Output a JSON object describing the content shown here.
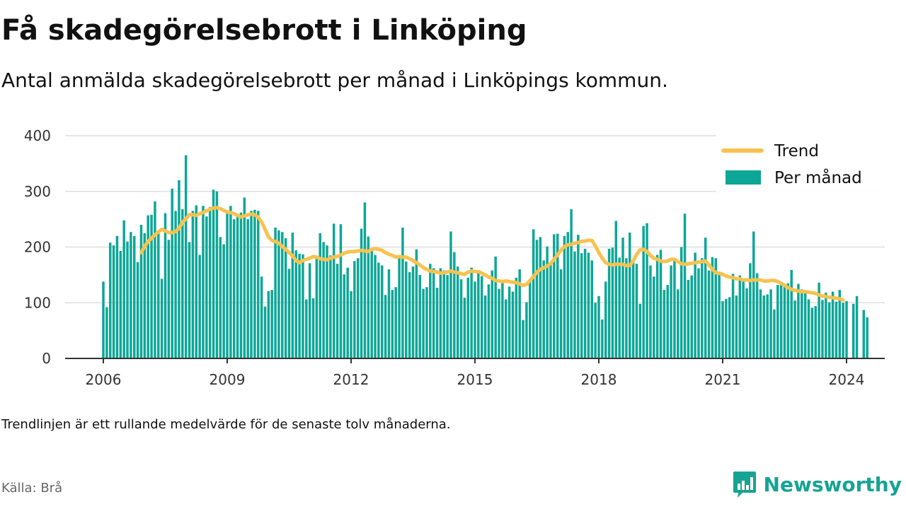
{
  "title": "Få skadegörelsebrott i Linköping",
  "subtitle": "Antal anmälda skadegörelsebrott per månad i Linköpings kommun.",
  "note": "Trendlinjen är ett rullande medelvärde för de senaste tolv månaderna.",
  "source": "Källa: Brå",
  "brand": {
    "name": "Newsworthy",
    "icon": "newsworthy-logo-icon",
    "color": "#16a394"
  },
  "colors": {
    "bar": "#0ea697",
    "trend": "#f8c24f",
    "grid": "#dddddd",
    "axis": "#333333"
  },
  "chart_data": {
    "type": "bar",
    "title": "Få skadegörelsebrott i Linköping",
    "xlabel": "",
    "ylabel": "",
    "x_range": [
      2006,
      2024.0
    ],
    "ylim": [
      0,
      400
    ],
    "y_ticks": [
      0,
      100,
      200,
      300,
      400
    ],
    "x_ticks": [
      2006,
      2009,
      2012,
      2015,
      2018,
      2021,
      2024
    ],
    "grid": true,
    "legend": {
      "placement": "top-right",
      "entries": [
        "Trend",
        "Per månad"
      ]
    },
    "start": "2006-01",
    "series": [
      {
        "name": "Per månad",
        "type": "bar",
        "values": [
          138,
          92,
          208,
          203,
          220,
          193,
          248,
          210,
          227,
          220,
          173,
          240,
          225,
          257,
          258,
          282,
          226,
          143,
          261,
          213,
          305,
          265,
          320,
          268,
          365,
          209,
          265,
          275,
          186,
          274,
          255,
          272,
          303,
          300,
          218,
          205,
          260,
          274,
          250,
          258,
          262,
          289,
          250,
          265,
          267,
          265,
          147,
          93,
          121,
          123,
          235,
          230,
          227,
          216,
          161,
          226,
          194,
          188,
          187,
          106,
          171,
          108,
          181,
          225,
          209,
          203,
          185,
          242,
          170,
          241,
          151,
          163,
          121,
          175,
          180,
          233,
          280,
          219,
          196,
          186,
          172,
          167,
          114,
          160,
          123,
          128,
          180,
          235,
          174,
          155,
          165,
          196,
          150,
          125,
          128,
          170,
          162,
          127,
          162,
          158,
          150,
          228,
          191,
          165,
          142,
          109,
          145,
          163,
          138,
          157,
          148,
          113,
          133,
          158,
          183,
          125,
          140,
          106,
          129,
          120,
          145,
          160,
          69,
          101,
          140,
          232,
          213,
          218,
          176,
          201,
          173,
          223,
          224,
          160,
          220,
          227,
          268,
          192,
          222,
          189,
          197,
          190,
          176,
          100,
          112,
          70,
          138,
          197,
          199,
          247,
          181,
          217,
          180,
          226,
          173,
          170,
          98,
          238,
          243,
          167,
          147,
          186,
          195,
          123,
          132,
          167,
          177,
          124,
          200,
          260,
          141,
          149,
          190,
          162,
          180,
          217,
          158,
          182,
          180,
          152,
          103,
          107,
          110,
          152,
          113,
          149,
          138,
          126,
          171,
          228,
          153,
          124,
          113,
          115,
          124,
          88,
          132,
          133,
          133,
          135,
          159,
          104,
          134,
          124,
          117,
          106,
          91,
          94,
          136,
          105,
          118,
          101,
          120,
          102,
          123,
          100,
          103,
          0,
          98,
          112,
          0,
          87,
          74
        ],
        "color": "#0ea697"
      },
      {
        "name": "Trend",
        "type": "line",
        "start": "2006-12",
        "values": [
          190,
          201,
          210,
          216,
          222,
          227,
          232,
          229,
          226,
          226,
          228,
          234,
          244,
          251,
          258,
          258,
          257,
          260,
          262,
          265,
          268,
          270,
          271,
          269,
          266,
          263,
          262,
          260,
          257,
          254,
          256,
          258,
          259,
          258,
          254,
          245,
          232,
          218,
          212,
          210,
          207,
          201,
          196,
          190,
          184,
          176,
          172,
          176,
          178,
          180,
          183,
          182,
          179,
          178,
          177,
          180,
          182,
          183,
          186,
          189,
          191,
          192,
          192,
          193,
          194,
          193,
          192,
          196,
          197,
          196,
          194,
          190,
          187,
          185,
          182,
          183,
          182,
          182,
          179,
          176,
          172,
          168,
          163,
          160,
          157,
          156,
          155,
          153,
          154,
          155,
          157,
          155,
          154,
          152,
          151,
          155,
          157,
          156,
          156,
          153,
          150,
          146,
          144,
          140,
          139,
          138,
          139,
          138,
          137,
          136,
          134,
          131,
          133,
          140,
          147,
          155,
          160,
          163,
          166,
          170,
          178,
          186,
          194,
          201,
          204,
          205,
          207,
          208,
          210,
          211,
          212,
          212,
          202,
          190,
          180,
          172,
          169,
          168,
          169,
          169,
          169,
          167,
          167,
          175,
          187,
          195,
          196,
          192,
          185,
          180,
          178,
          175,
          174,
          175,
          178,
          178,
          174,
          170,
          169,
          170,
          171,
          172,
          173,
          174,
          175,
          168,
          160,
          154,
          153,
          151,
          148,
          146,
          145,
          143,
          143,
          141,
          141,
          140,
          141,
          141,
          141,
          139,
          139,
          140,
          140,
          138,
          135,
          131,
          127,
          124,
          122,
          121,
          120,
          120,
          119,
          118,
          117,
          114,
          112,
          111,
          110,
          109,
          108,
          107,
          105
        ],
        "color": "#f8c24f"
      }
    ]
  }
}
